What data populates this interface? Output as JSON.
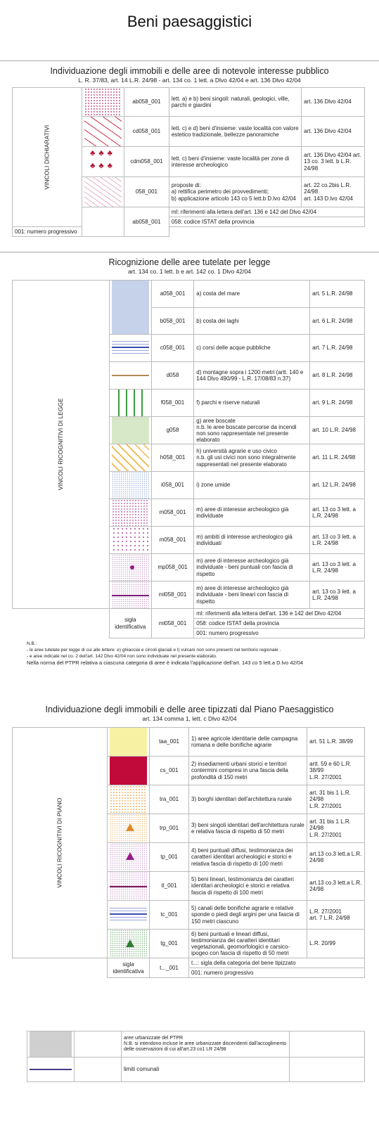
{
  "title": "Beni paesaggistici",
  "s1": {
    "heading": "Individuazione degli immobili e delle aree di notevole interesse pubblico",
    "subheading": "L. R. 37/83, art. 14 L.R. 24/98 - art. 134 co. 1 lett. a Dlvo 42/04  e art. 136 Dlvo 42/04",
    "side_label": "VINCOLI DICHIARATIVI",
    "rows": [
      {
        "code": "ab058_001",
        "desc": "lett. a) e b) beni singoli: naturali, geologici, ville, parchi e giardini",
        "ref": "art. 136 Dlvo 42/04"
      },
      {
        "code": "cd058_001",
        "desc": "lett. c) e d) beni d'insieme: vaste località con valore estetico tradizionale, bellezze panoramiche",
        "ref": "art. 136 Dlvo 42/04"
      },
      {
        "code": "cdm058_001",
        "desc": "lett. c) beni d'insieme: vaste località per zone di interesse archeologico",
        "ref": "art. 136 Dlvo 42/04\nart. 13 co. 3 lett. b\nL.R. 24/98"
      },
      {
        "code": "058_001",
        "desc": "proposte di:\na) rettifica perimetro dei provvedimenti;\nb) applicazione articolo 143 co 5 lett.b D.lvo 42/04",
        "ref": "art. 22 co.2bis L.R. 24/98\nart. 143 D.lvo 42/04"
      }
    ],
    "code_example": "ab058_001",
    "notes": [
      "ml: riferimenti alla lettera dell'art. 136 e 142 del Dlvo 42/04",
      "058: codice ISTAT della provincia",
      "001: numero progressivo"
    ]
  },
  "s2": {
    "heading": "Ricognizione delle aree tutelate per legge",
    "subheading": "art. 134 co. 1 lett. b e art. 142 co. 1 Dlvo 42/04",
    "side_label": "VINCOLI RICOGNITIVI DI LEGGE",
    "rows": [
      {
        "code": "a058_001",
        "desc": "a) costa del mare",
        "ref": "art. 5 L.R. 24/98"
      },
      {
        "code": "b058_001",
        "desc": "b) costa dei laghi",
        "ref": "art. 6 L.R. 24/98"
      },
      {
        "code": "c058_001",
        "desc": "c) corsi delle acque pubbliche",
        "ref": "art. 7 L.R. 24/98"
      },
      {
        "code": "d058",
        "desc": "d) montagne sopra i 1200 metri (artt. 140 e 144 Dlvo 490/99 - L.R. 17/08/83 n.37)",
        "ref": "art. 8 L.R. 24/98"
      },
      {
        "code": "f058_001",
        "desc": "f) parchi e riserve naturali",
        "ref": "art. 9 L.R. 24/98"
      },
      {
        "code": "g058",
        "desc": "g) aree boscate\nn.b. le aree boscate percorse da incendi non sono rappresentate nel presente elaborato",
        "ref": "art. 10 L.R. 24/98"
      },
      {
        "code": "h058_001",
        "desc": "h) università agrarie e uso civico\nn.b. gli usi civici non sono integralmente rappresentati nel presente elaborato",
        "ref": "art. 11 L.R. 24/98"
      },
      {
        "code": "i058_001",
        "desc": "i) zone umide",
        "ref": "art. 12 L.R. 24/98"
      },
      {
        "code": "m058_001",
        "desc": "m) aree di interesse archeologico già individuate",
        "ref": "art. 13 co 3 lett. a\nL.R. 24/98"
      },
      {
        "code": "m058_001",
        "desc": "m) ambiti di interesse archeologico già individuati",
        "ref": "art. 13 co 3 lett. a\nL.R. 24/98"
      },
      {
        "code": "mp058_001",
        "desc": "m) aree di interesse archeologico già individuate - beni puntuali con fascia di rispetto",
        "ref": "art. 13 co 3 lett. a\nL.R. 24/98"
      },
      {
        "code": "ml058_001",
        "desc": "m) aree di interesse archeologico già individuate - beni lineari con fascia di rispetto",
        "ref": "art. 13 co 3 lett. a\nL.R. 24/98"
      }
    ],
    "sigla_label": "sigla identificativa",
    "code_example": "ml058_001",
    "notes": [
      "ml: riferimenti alla lettera dell'art. 136 e 142 del Dlvo 42/04",
      "058: codice ISTAT della provincia",
      "001: numero progressivo"
    ],
    "nb_title": "N.B.:",
    "nb_lines": [
      "- le aree tutelate per legge di cui alle lettere: e) ghiacciai e circoli glaciali e l) vulcani non sono presenti nel territorio regionale .",
      "- e aree indicate nel co. 2 dell'art. 142 Dlvo 42/04 non sono individuate nel presente elaborato.",
      "Nella norma del PTPR relativa a ciascuna categoria di aree è indicata l'applicazione dell'art. 143 co 5 lett.a D.lvo 42/04"
    ]
  },
  "s3": {
    "heading": "Individuazione degli immobili e delle aree tipizzati dal Piano Paesaggistico",
    "subheading": "art. 134 comma 1, lett. c Dlvo 42/04",
    "side_label": "VINCOLI RICOGNITIVI DI PIANO",
    "rows": [
      {
        "code": "taa_001",
        "desc": "1) aree agricole identitarie delle campagna romana e delle bonifiche agrarie",
        "ref": "art. 51 L.R. 38/99"
      },
      {
        "code": "cs_001",
        "desc": "2) insediamenti urbani storici e  territori contermini compresi in una fascia della profondità di 150 metri",
        "ref": "artt. 59 e 60 L.R. 38/99\nL.R. 27/2001"
      },
      {
        "code": "tra_001",
        "desc": "3) borghi identitari dell'architettura rurale",
        "ref": "art. 31 bis 1 L.R. 24/98\nL.R. 27/2001"
      },
      {
        "code": "trp_001",
        "desc": "3) beni singoli identitari dell'architettura rurale e relativa fascia di rispetto di 50 metri",
        "ref": "art. 31 bis 1 L.R. 24/98\nL.R. 27/2001"
      },
      {
        "code": "tp_001",
        "desc": "4) beni puntuali diffusi, testimonianza dei caratteri identitari archeologici e storici e relativa fascia di rispetto di 100 metri",
        "ref": "art.13 co.3 lett.a L.R. 24/98"
      },
      {
        "code": "tl_001",
        "desc": "5) beni lineari, testimonianza dei caratteri identitari archeologici e storici e relativa fascia di rispetto di 100 metri",
        "ref": "art.13 co.3 lett.a L.R. 24/98"
      },
      {
        "code": "tc_001",
        "desc": "5) canali delle bonifiche agrarie e relative sponde o piedi degli argini per una fascia di 150 metri ciascuno",
        "ref": "L.R. 27/2001\nart. 7 L.R. 24/98"
      },
      {
        "code": "tg_001",
        "desc": "6) beni puntuali e lineari diffusi, testimonianza dei caratteri identitari vegetazionali, geomorfologici e carsico-ipogeo con fascia di rispetto di 50 metri",
        "ref": "L.R. 20/99"
      }
    ],
    "sigla_label": "sigla identificativa",
    "code_example": "t..._001",
    "notes": [
      "t...: sigla della categoria del bene tipizzato",
      "001: numero progressivo"
    ]
  },
  "s4": {
    "rows": [
      {
        "desc": "aree urbanizzate del PTPR\nN.B. si intendono incluse le aree urbanizzate discendenti dall'accoglimento delle osservazioni di cui all'art.23 co1 LR 24/98"
      },
      {
        "desc": "limiti comunali"
      }
    ]
  },
  "colors": {
    "costa_mare": "#c5d2ea",
    "laghi": "#c5d2ea",
    "acque": "#5b6cc0",
    "montagne": "#b08a5a",
    "parchi": "#3d9b3d",
    "boschi": "#d7e8c8",
    "usi_civici": "#f1b64a",
    "archeo": "#b0509a",
    "taa": "#f6f1a3",
    "cs": "#c10a3a",
    "rural": "#f0a040",
    "tp": "#9a1a8a",
    "tg": "#2e7d32",
    "urbanizzate": "#cfcfcf",
    "comunali": "#4a3a8a"
  }
}
